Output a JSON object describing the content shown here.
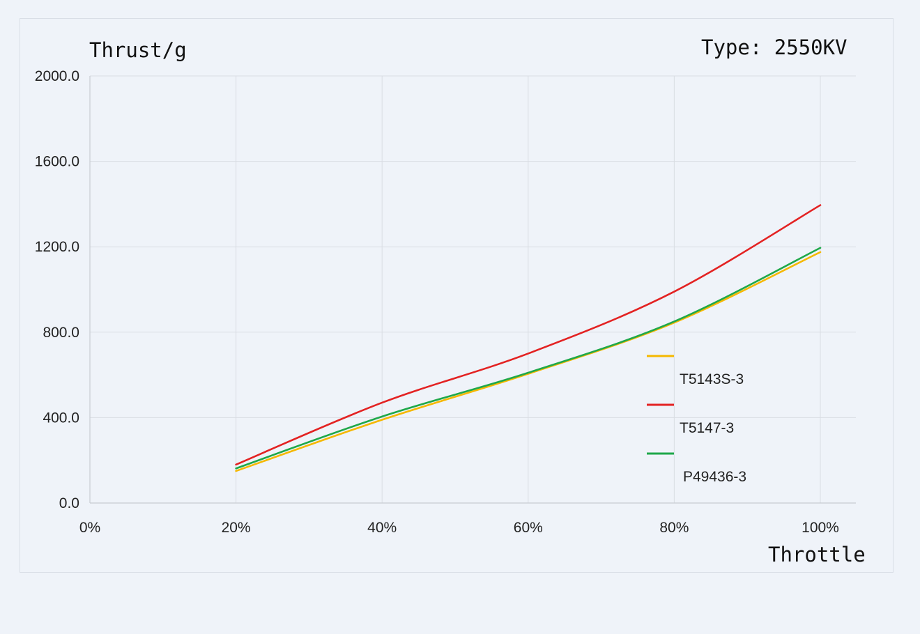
{
  "chart_data": {
    "type": "line",
    "title": "Type: 2550KV",
    "xlabel": "Throttle",
    "ylabel": "Thrust/g",
    "x_ticks": [
      "0%",
      "20%",
      "40%",
      "60%",
      "80%",
      "100%"
    ],
    "y_ticks": [
      "0.0",
      "400.0",
      "800.0",
      "1200.0",
      "1600.0",
      "2000.0"
    ],
    "xlim": [
      0,
      100
    ],
    "ylim": [
      0,
      2000
    ],
    "grid": true,
    "legend_position": "right",
    "x": [
      20,
      40,
      60,
      80,
      100
    ],
    "series": [
      {
        "name": "T5143S-3",
        "color": "#f5b800",
        "values": [
          150,
          390,
          605,
          845,
          1175
        ]
      },
      {
        "name": "T5147-3",
        "color": "#e32222",
        "values": [
          180,
          470,
          700,
          990,
          1395
        ]
      },
      {
        "name": "P49436-3",
        "color": "#1fa84a",
        "values": [
          162,
          405,
          610,
          850,
          1195
        ]
      }
    ]
  }
}
